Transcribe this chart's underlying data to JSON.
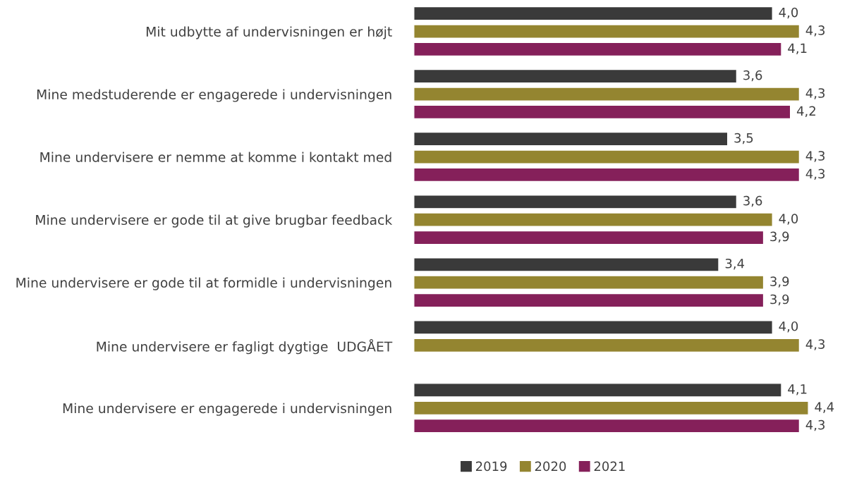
{
  "chart_data": {
    "type": "bar",
    "orientation": "horizontal",
    "categories": [
      "Mit udbytte af undervisningen er højt",
      "Mine medstuderende er engagerede i undervisningen",
      "Mine undervisere er nemme at komme i kontakt med",
      "Mine undervisere er gode til at give brugbar feedback",
      "Mine undervisere er gode til at formidle i undervisningen",
      "Mine undervisere er fagligt dygtige  UDGÅET",
      "Mine undervisere er engagerede i undervisningen"
    ],
    "series": [
      {
        "name": "2019",
        "color": "#3a3a3a",
        "values": [
          4.0,
          3.6,
          3.5,
          3.6,
          3.4,
          4.0,
          4.1
        ],
        "value_labels": [
          "4,0",
          "3,6",
          "3,5",
          "3,6",
          "3,4",
          "4,0",
          "4,1"
        ]
      },
      {
        "name": "2020",
        "color": "#948530",
        "values": [
          4.3,
          4.3,
          4.3,
          4.0,
          3.9,
          4.3,
          4.4
        ],
        "value_labels": [
          "4,3",
          "4,3",
          "4,3",
          "4,0",
          "3,9",
          "4,3",
          "4,4"
        ]
      },
      {
        "name": "2021",
        "color": "#85205a",
        "values": [
          4.1,
          4.2,
          4.3,
          3.9,
          3.9,
          null,
          4.3
        ],
        "value_labels": [
          "4,1",
          "4,2",
          "4,3",
          "3,9",
          "3,9",
          null,
          "4,3"
        ]
      }
    ],
    "legend": "bottom",
    "grid": false,
    "tick_labels": "y"
  }
}
